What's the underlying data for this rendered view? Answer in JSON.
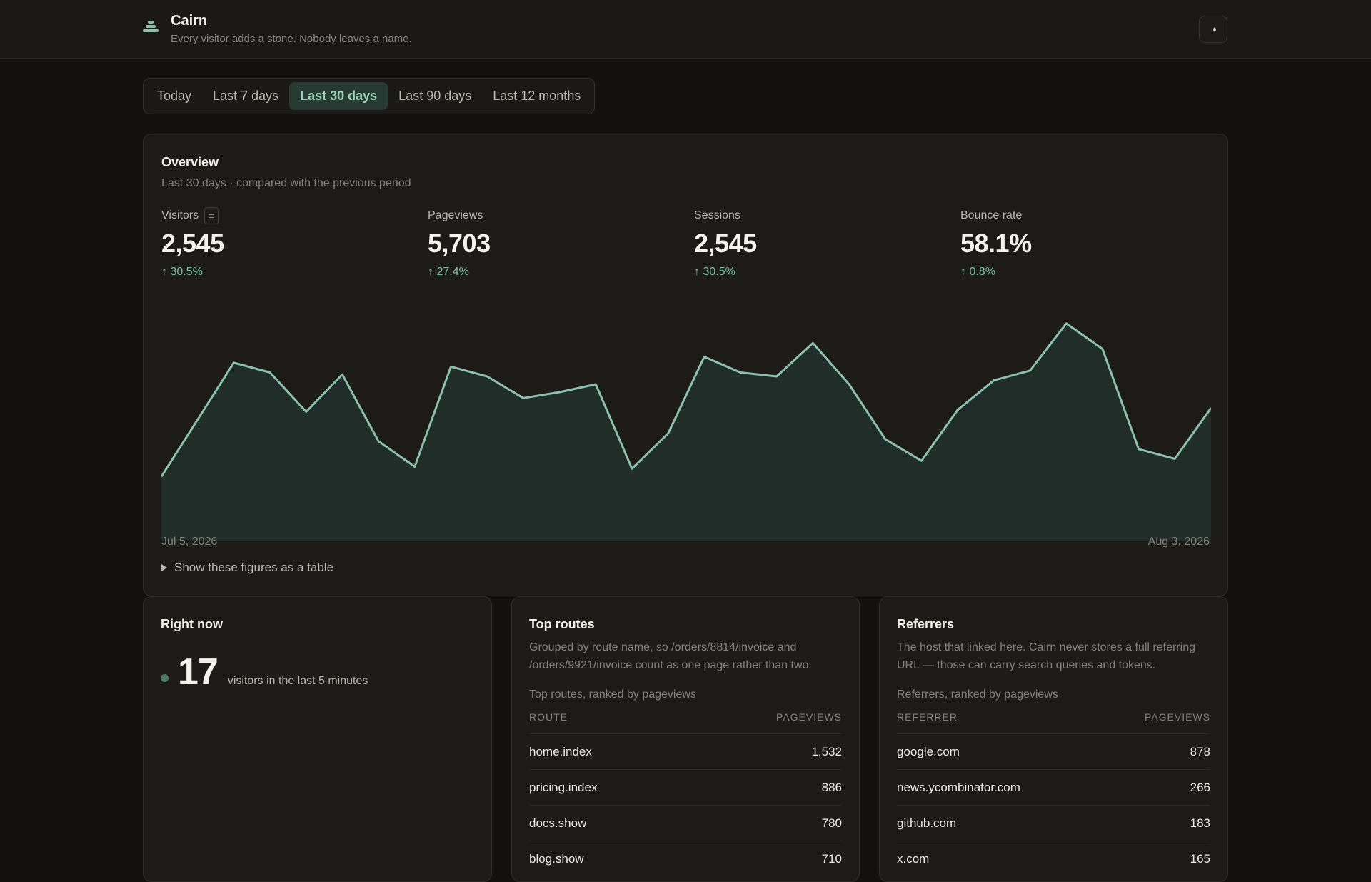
{
  "header": {
    "app_name": "Cairn",
    "tagline": "Every visitor adds a stone. Nobody leaves a name.",
    "theme_toggle_icon": "moon-icon"
  },
  "range": {
    "options": [
      "Today",
      "Last 7 days",
      "Last 30 days",
      "Last 90 days",
      "Last 12 months"
    ],
    "selected": "Last 30 days"
  },
  "overview": {
    "title": "Overview",
    "subtitle": "Last 30 days · compared with the previous period",
    "stats": [
      {
        "label": "Visitors",
        "value": "2,545",
        "delta": "↑ 30.5%"
      },
      {
        "label": "Pageviews",
        "value": "5,703",
        "delta": "↑ 27.4%"
      },
      {
        "label": "Sessions",
        "value": "2,545",
        "delta": "↑ 30.5%"
      },
      {
        "label": "Bounce rate",
        "value": "58.1%",
        "delta": "↑ 0.8%"
      }
    ],
    "start_date": "Jul 5, 2026",
    "end_date": "Aug 3, 2026",
    "table_toggle": "Show these figures as a table"
  },
  "chart_data": {
    "type": "area",
    "series": [
      {
        "values": [
          33,
          62,
          91,
          86,
          66,
          85,
          51,
          38,
          89,
          84,
          73,
          76,
          80,
          37,
          55,
          94,
          86,
          84,
          101,
          80,
          52,
          41,
          67,
          82,
          87,
          111,
          98,
          47,
          42,
          68
        ]
      }
    ],
    "ylim": [
      0,
      120
    ],
    "grid": false,
    "colors": {
      "line": "#8dc1ad",
      "fill": "#212d29"
    }
  },
  "right_now": {
    "title": "Right now",
    "count": "17",
    "text": "visitors in the last 5 minutes"
  },
  "top_routes": {
    "title": "Top routes",
    "description": "Grouped by route name, so /orders/8814/invoice and /orders/9921/invoice count as one page rather than two.",
    "caption": "Top routes, ranked by pageviews",
    "col_name": "ROUTE",
    "col_value": "PAGEVIEWS",
    "rows": [
      {
        "name": "home.index",
        "value": "1,532"
      },
      {
        "name": "pricing.index",
        "value": "886"
      },
      {
        "name": "docs.show",
        "value": "780"
      },
      {
        "name": "blog.show",
        "value": "710"
      }
    ]
  },
  "referrers": {
    "title": "Referrers",
    "description": "The host that linked here. Cairn never stores a full referring URL — those can carry search queries and tokens.",
    "caption": "Referrers, ranked by pageviews",
    "col_name": "REFERRER",
    "col_value": "PAGEVIEWS",
    "rows": [
      {
        "name": "google.com",
        "value": "878"
      },
      {
        "name": "news.ycombinator.com",
        "value": "266"
      },
      {
        "name": "github.com",
        "value": "183"
      },
      {
        "name": "x.com",
        "value": "165"
      }
    ]
  }
}
